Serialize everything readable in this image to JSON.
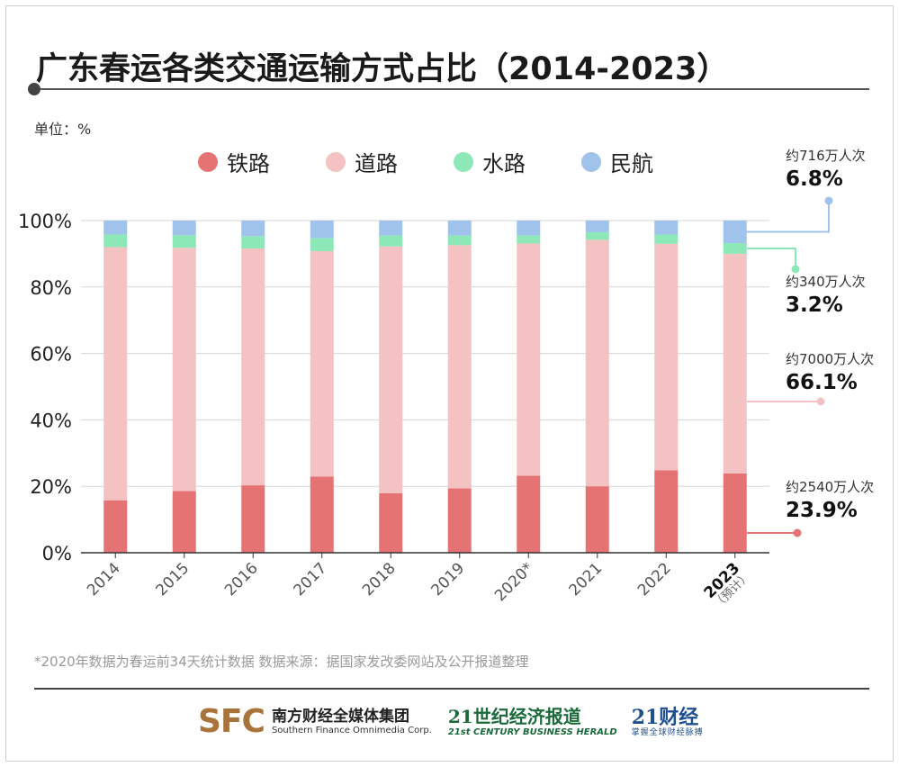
{
  "title": "广东春运各类交通运输方式占比（2014-2023）",
  "unit": "单位：%",
  "footnote": "*2020年数据为春运前34天统计数据 数据来源：据国家发改委网站及公开报道整理",
  "colors": {
    "rail": "#e57373",
    "road": "#f4c2c2",
    "water": "#8de8b8",
    "air": "#9fc3ea"
  },
  "logos": {
    "sfc_letters": "SFC",
    "sfc_cn": "南方财经全媒体集团",
    "sfc_en": "Southern Finance Omnimedia Corp.",
    "herald_cn": "21世纪经济报道",
    "herald_en": "21st CENTURY BUSINESS HERALD",
    "cj_cn": "21财经",
    "cj_sub": "掌握全球财经脉搏"
  },
  "chart_data": {
    "type": "bar",
    "stacked": true,
    "categories": [
      "2014",
      "2015",
      "2016",
      "2017",
      "2018",
      "2019",
      "2020*",
      "2021",
      "2022",
      "2023"
    ],
    "last_category_note": "（预计）",
    "series": [
      {
        "name": "铁路",
        "key": "rail",
        "values": [
          15.8,
          18.6,
          20.3,
          22.9,
          17.9,
          19.4,
          23.2,
          20.0,
          24.8,
          23.9
        ]
      },
      {
        "name": "道路",
        "key": "road",
        "values": [
          76.2,
          73.2,
          71.3,
          67.9,
          74.3,
          73.2,
          69.9,
          74.2,
          68.2,
          66.1
        ]
      },
      {
        "name": "水路",
        "key": "water",
        "values": [
          3.8,
          3.8,
          3.7,
          3.9,
          3.3,
          2.9,
          2.4,
          2.3,
          2.8,
          3.2
        ]
      },
      {
        "name": "民航",
        "key": "air",
        "values": [
          4.2,
          4.4,
          4.7,
          5.3,
          4.5,
          4.5,
          4.5,
          3.5,
          4.2,
          6.8
        ]
      }
    ],
    "yticks": [
      "0%",
      "20%",
      "40%",
      "60%",
      "80%",
      "100%"
    ],
    "ylim": [
      0,
      100
    ],
    "grid": true,
    "legend": "top",
    "annotations": [
      {
        "series": "air",
        "count": "约716万人次",
        "pct": "6.8%"
      },
      {
        "series": "water",
        "count": "约340万人次",
        "pct": "3.2%"
      },
      {
        "series": "road",
        "count": "约7000万人次",
        "pct": "66.1%"
      },
      {
        "series": "rail",
        "count": "约2540万人次",
        "pct": "23.9%"
      }
    ]
  }
}
